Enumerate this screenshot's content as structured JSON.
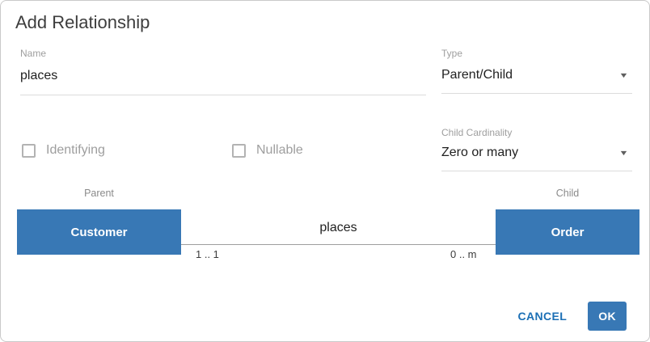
{
  "dialog": {
    "title": "Add Relationship",
    "name_field": {
      "label": "Name",
      "value": "places"
    },
    "type_field": {
      "label": "Type",
      "value": "Parent/Child"
    },
    "identifying_checkbox": {
      "label": "Identifying",
      "checked": false
    },
    "nullable_checkbox": {
      "label": "Nullable",
      "checked": false
    },
    "cardinality_field": {
      "label": "Child Cardinality",
      "value": "Zero or many"
    },
    "diagram": {
      "parent_label": "Parent",
      "child_label": "Child",
      "parent_entity": "Customer",
      "child_entity": "Order",
      "relationship_label": "places",
      "parent_cardinality": "1 .. 1",
      "child_cardinality": "0 .. m"
    },
    "actions": {
      "cancel": "CANCEL",
      "ok": "OK"
    }
  },
  "icons": {
    "dropdown_arrow": "▼"
  },
  "colors": {
    "entity_blue": "#3878b5",
    "accent_blue": "#1b6fb5",
    "label_gray": "#9e9e9e"
  }
}
